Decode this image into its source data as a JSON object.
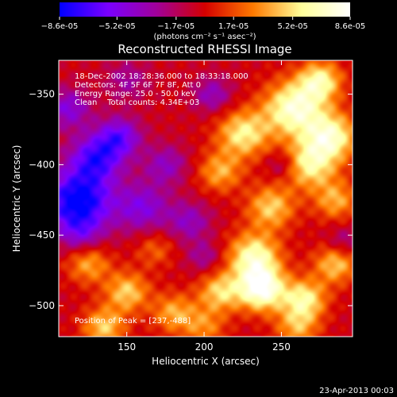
{
  "chart_data": {
    "type": "heatmap",
    "title": "Reconstructed RHESSI Image",
    "colorbar": {
      "tick_labels": [
        "-8.6e-05",
        "-5.2e-05",
        "-1.7e-05",
        "1.7e-05",
        "5.2e-05",
        "8.6e-05"
      ],
      "tick_values": [
        -8.6e-05,
        -5.2e-05,
        -1.7e-05,
        1.7e-05,
        5.2e-05,
        8.6e-05
      ],
      "range": [
        -8.6e-05,
        8.6e-05
      ],
      "units_label": "(photons cm⁻² s⁻¹ asec⁻²)",
      "colors": [
        "#0000ff",
        "#7a00ff",
        "#a0009a",
        "#d40000",
        "#ff7a00",
        "#ffff9a",
        "#ffffff"
      ]
    },
    "xlabel": "Heliocentric X (arcsec)",
    "ylabel": "Heliocentric Y (arcsec)",
    "xlim": [
      106,
      296
    ],
    "ylim": [
      -522,
      -326
    ],
    "xticks": [
      150,
      200,
      250
    ],
    "yticks": [
      -350,
      -400,
      -450,
      -500
    ],
    "xtick_labels": [
      "150",
      "200",
      "250"
    ],
    "ytick_labels": [
      "-350",
      "-400",
      "-450",
      "-500"
    ],
    "annotations": [
      "18-Dec-2002 18:28:36.000 to 18:33:18.000",
      "Detectors: 4F 5F 6F 7F 8F, Att 0",
      "Energy Range: 25.0 - 50.0 keV",
      "Clean    Total counts: 4.34E+03"
    ],
    "peak_label": "Position of Peak = [237,-488]",
    "peak": [
      237,
      -488
    ],
    "blobs": [
      [
        118,
        -426,
        -1.0,
        16
      ],
      [
        130,
        -395,
        -0.7,
        12
      ],
      [
        145,
        -380,
        -0.6,
        10
      ],
      [
        112,
        -360,
        -0.5,
        10
      ],
      [
        160,
        -430,
        -0.5,
        12
      ],
      [
        175,
        -400,
        -0.4,
        10
      ],
      [
        205,
        -350,
        -0.4,
        9
      ],
      [
        190,
        -440,
        -0.4,
        10
      ],
      [
        150,
        -340,
        -0.3,
        10
      ],
      [
        225,
        -378,
        0.7,
        12
      ],
      [
        258,
        -360,
        0.9,
        14
      ],
      [
        282,
        -380,
        0.8,
        12
      ],
      [
        275,
        -340,
        0.7,
        10
      ],
      [
        268,
        -400,
        0.7,
        12
      ],
      [
        243,
        -430,
        0.6,
        11
      ],
      [
        285,
        -425,
        0.5,
        10
      ],
      [
        210,
        -405,
        0.5,
        10
      ],
      [
        232,
        -465,
        0.8,
        12
      ],
      [
        237,
        -488,
        1.0,
        11
      ],
      [
        210,
        -490,
        0.6,
        10
      ],
      [
        265,
        -495,
        0.7,
        10
      ],
      [
        285,
        -470,
        0.6,
        10
      ],
      [
        180,
        -505,
        0.5,
        10
      ],
      [
        150,
        -490,
        0.6,
        10
      ],
      [
        125,
        -470,
        0.5,
        10
      ],
      [
        135,
        -515,
        0.6,
        10
      ],
      [
        200,
        -515,
        0.4,
        10
      ],
      [
        260,
        -515,
        0.5,
        10
      ],
      [
        168,
        -460,
        0.3,
        9
      ],
      [
        120,
        -450,
        -0.3,
        9
      ],
      [
        200,
        -465,
        -0.3,
        8
      ],
      [
        290,
        -455,
        -0.3,
        8
      ],
      [
        250,
        -400,
        -0.3,
        7
      ]
    ]
  },
  "footer": {
    "date": "23-Apr-2013 00:03"
  }
}
